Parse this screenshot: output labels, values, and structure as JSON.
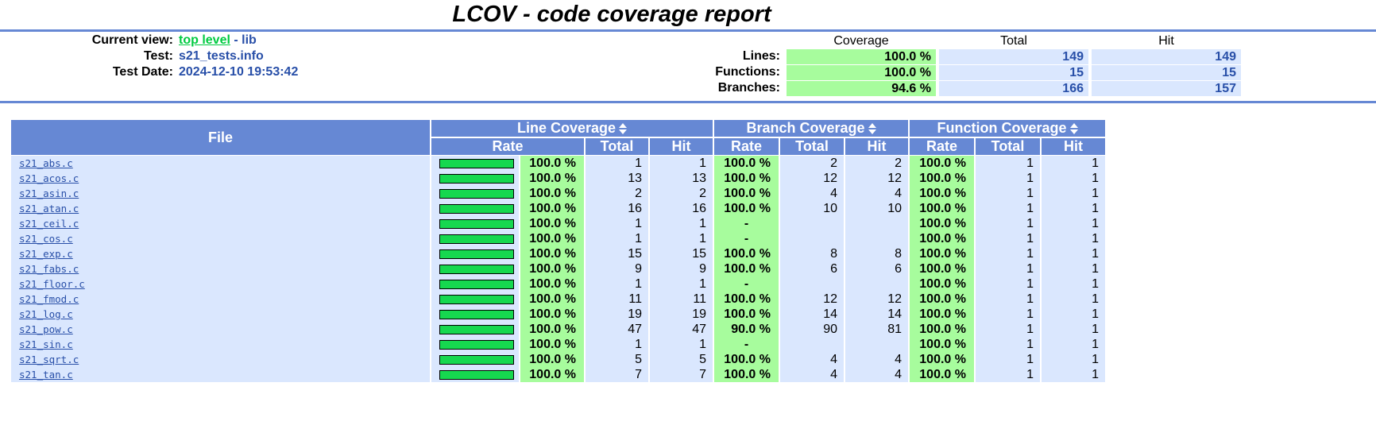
{
  "title": "LCOV - code coverage report",
  "header": {
    "current_view_label": "Current view:",
    "top_level_link": "top level",
    "separator": " - ",
    "current_dir": "lib",
    "test_label": "Test:",
    "test_value": "s21_tests.info",
    "test_date_label": "Test Date:",
    "test_date_value": "2024-12-10 19:53:42"
  },
  "summary": {
    "col_coverage": "Coverage",
    "col_total": "Total",
    "col_hit": "Hit",
    "rows": [
      {
        "label": "Lines:",
        "coverage": "100.0 %",
        "total": "149",
        "hit": "149"
      },
      {
        "label": "Functions:",
        "coverage": "100.0 %",
        "total": "15",
        "hit": "15"
      },
      {
        "label": "Branches:",
        "coverage": "94.6 %",
        "total": "166",
        "hit": "157"
      }
    ]
  },
  "table": {
    "file_header": "File",
    "line_cov_header": "Line Coverage",
    "branch_cov_header": "Branch Coverage",
    "func_cov_header": "Function Coverage",
    "sub_rate": "Rate",
    "sub_total": "Total",
    "sub_hit": "Hit",
    "rows": [
      {
        "file": "s21_abs.c",
        "line_pct": 100,
        "line_rate": "100.0 %",
        "line_total": "1",
        "line_hit": "1",
        "br_rate": "100.0 %",
        "br_total": "2",
        "br_hit": "2",
        "fn_rate": "100.0 %",
        "fn_total": "1",
        "fn_hit": "1"
      },
      {
        "file": "s21_acos.c",
        "line_pct": 100,
        "line_rate": "100.0 %",
        "line_total": "13",
        "line_hit": "13",
        "br_rate": "100.0 %",
        "br_total": "12",
        "br_hit": "12",
        "fn_rate": "100.0 %",
        "fn_total": "1",
        "fn_hit": "1"
      },
      {
        "file": "s21_asin.c",
        "line_pct": 100,
        "line_rate": "100.0 %",
        "line_total": "2",
        "line_hit": "2",
        "br_rate": "100.0 %",
        "br_total": "4",
        "br_hit": "4",
        "fn_rate": "100.0 %",
        "fn_total": "1",
        "fn_hit": "1"
      },
      {
        "file": "s21_atan.c",
        "line_pct": 100,
        "line_rate": "100.0 %",
        "line_total": "16",
        "line_hit": "16",
        "br_rate": "100.0 %",
        "br_total": "10",
        "br_hit": "10",
        "fn_rate": "100.0 %",
        "fn_total": "1",
        "fn_hit": "1"
      },
      {
        "file": "s21_ceil.c",
        "line_pct": 100,
        "line_rate": "100.0 %",
        "line_total": "1",
        "line_hit": "1",
        "br_rate": "-",
        "br_total": "",
        "br_hit": "",
        "fn_rate": "100.0 %",
        "fn_total": "1",
        "fn_hit": "1"
      },
      {
        "file": "s21_cos.c",
        "line_pct": 100,
        "line_rate": "100.0 %",
        "line_total": "1",
        "line_hit": "1",
        "br_rate": "-",
        "br_total": "",
        "br_hit": "",
        "fn_rate": "100.0 %",
        "fn_total": "1",
        "fn_hit": "1"
      },
      {
        "file": "s21_exp.c",
        "line_pct": 100,
        "line_rate": "100.0 %",
        "line_total": "15",
        "line_hit": "15",
        "br_rate": "100.0 %",
        "br_total": "8",
        "br_hit": "8",
        "fn_rate": "100.0 %",
        "fn_total": "1",
        "fn_hit": "1"
      },
      {
        "file": "s21_fabs.c",
        "line_pct": 100,
        "line_rate": "100.0 %",
        "line_total": "9",
        "line_hit": "9",
        "br_rate": "100.0 %",
        "br_total": "6",
        "br_hit": "6",
        "fn_rate": "100.0 %",
        "fn_total": "1",
        "fn_hit": "1"
      },
      {
        "file": "s21_floor.c",
        "line_pct": 100,
        "line_rate": "100.0 %",
        "line_total": "1",
        "line_hit": "1",
        "br_rate": "-",
        "br_total": "",
        "br_hit": "",
        "fn_rate": "100.0 %",
        "fn_total": "1",
        "fn_hit": "1"
      },
      {
        "file": "s21_fmod.c",
        "line_pct": 100,
        "line_rate": "100.0 %",
        "line_total": "11",
        "line_hit": "11",
        "br_rate": "100.0 %",
        "br_total": "12",
        "br_hit": "12",
        "fn_rate": "100.0 %",
        "fn_total": "1",
        "fn_hit": "1"
      },
      {
        "file": "s21_log.c",
        "line_pct": 100,
        "line_rate": "100.0 %",
        "line_total": "19",
        "line_hit": "19",
        "br_rate": "100.0 %",
        "br_total": "14",
        "br_hit": "14",
        "fn_rate": "100.0 %",
        "fn_total": "1",
        "fn_hit": "1"
      },
      {
        "file": "s21_pow.c",
        "line_pct": 100,
        "line_rate": "100.0 %",
        "line_total": "47",
        "line_hit": "47",
        "br_rate": "90.0 %",
        "br_total": "90",
        "br_hit": "81",
        "fn_rate": "100.0 %",
        "fn_total": "1",
        "fn_hit": "1"
      },
      {
        "file": "s21_sin.c",
        "line_pct": 100,
        "line_rate": "100.0 %",
        "line_total": "1",
        "line_hit": "1",
        "br_rate": "-",
        "br_total": "",
        "br_hit": "",
        "fn_rate": "100.0 %",
        "fn_total": "1",
        "fn_hit": "1"
      },
      {
        "file": "s21_sqrt.c",
        "line_pct": 100,
        "line_rate": "100.0 %",
        "line_total": "5",
        "line_hit": "5",
        "br_rate": "100.0 %",
        "br_total": "4",
        "br_hit": "4",
        "fn_rate": "100.0 %",
        "fn_total": "1",
        "fn_hit": "1"
      },
      {
        "file": "s21_tan.c",
        "line_pct": 100,
        "line_rate": "100.0 %",
        "line_total": "7",
        "line_hit": "7",
        "br_rate": "100.0 %",
        "br_total": "4",
        "br_hit": "4",
        "fn_rate": "100.0 %",
        "fn_total": "1",
        "fn_hit": "1"
      }
    ]
  },
  "colors": {
    "header_blue": "#6688d4",
    "row_blue": "#dae7fe",
    "rate_green": "#a7fc9d",
    "bar_green": "#16d84f",
    "link_blue": "#284fa8",
    "top_link_green": "#00cb40"
  },
  "icons": {
    "sort": "sort-icon"
  }
}
